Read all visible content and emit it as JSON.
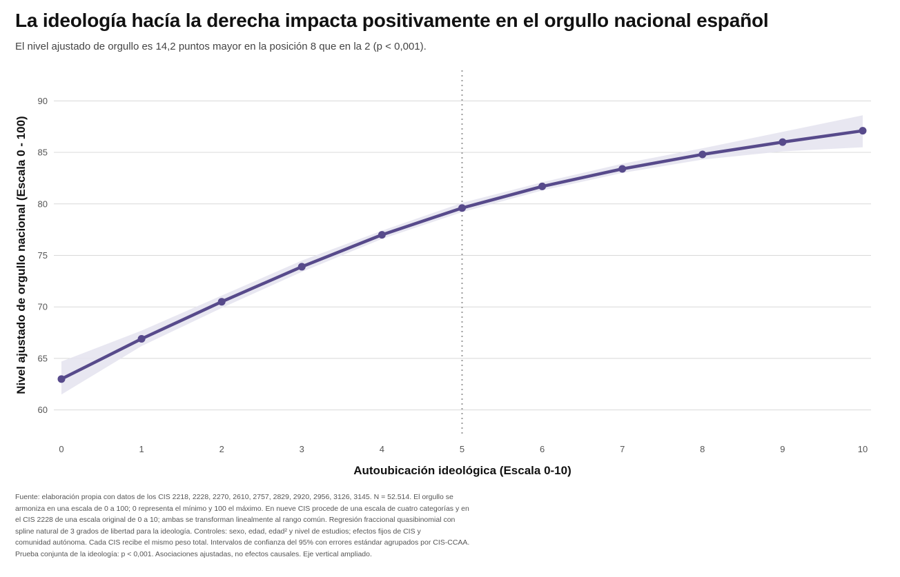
{
  "title": "La ideología hacía la derecha impacta positivamente en el orgullo nacional español",
  "subtitle": "El nivel ajustado de orgullo es 14,2 puntos mayor en la posición 8 que en la 2 (p < 0,001).",
  "caption_lines": [
    "Fuente: elaboración propia con datos de los CIS 2218, 2228, 2270, 2610, 2757, 2829, 2920, 2956, 3126, 3145. N = 52.514. El orgullo se",
    "armoniza en una escala de 0 a 100; 0 representa el mínimo y 100 el máximo. En nueve CIS procede de una escala de cuatro categorías y en",
    "el CIS 2228 de una escala original de 0 a 10; ambas se transforman linealmente al rango común. Regresión fraccional quasibinomial con",
    "spline natural de 3 grados de libertad para la ideología. Controles: sexo, edad, edad² y nivel de estudios; efectos fijos de CIS y",
    "comunidad autónoma. Cada CIS recibe el mismo peso total. Intervalos de confianza del 95% con errores estándar agrupados por CIS-CCAA.",
    "Prueba conjunta de la ideología: p < 0,001. Asociaciones ajustadas, no efectos causales. Eje vertical ampliado."
  ],
  "chart_data": {
    "type": "line",
    "xlabel": "Autoubicación ideológica (Escala 0-10)",
    "ylabel": "Nivel ajustado de orgullo nacional (Escala 0 - 100)",
    "x": [
      0,
      1,
      2,
      3,
      4,
      5,
      6,
      7,
      8,
      9,
      10
    ],
    "x_ticks": [
      "0",
      "1",
      "2",
      "3",
      "4",
      "5",
      "6",
      "7",
      "8",
      "9",
      "10"
    ],
    "y_ticks": [
      "60",
      "65",
      "70",
      "75",
      "80",
      "85",
      "90"
    ],
    "xlim": [
      0,
      10
    ],
    "ylim": [
      57.3,
      93.1
    ],
    "grid": "horizontal",
    "reference_line_x": 5,
    "series": [
      {
        "values": [
          63.0,
          66.9,
          70.5,
          73.9,
          77.0,
          79.6,
          81.7,
          83.4,
          84.8,
          86.0,
          87.1
        ],
        "ci_lower": [
          61.5,
          66.2,
          69.9,
          73.4,
          76.6,
          79.2,
          81.3,
          83.0,
          84.3,
          85.1,
          85.5
        ],
        "ci_upper": [
          64.7,
          67.7,
          71.1,
          74.5,
          77.4,
          80.1,
          82.1,
          83.9,
          85.4,
          87.0,
          88.6
        ]
      }
    ],
    "colors": {
      "line": "#574a8b",
      "band": "#e6e4f0",
      "grid": "#d8d8d8",
      "reference": "#999999"
    }
  }
}
